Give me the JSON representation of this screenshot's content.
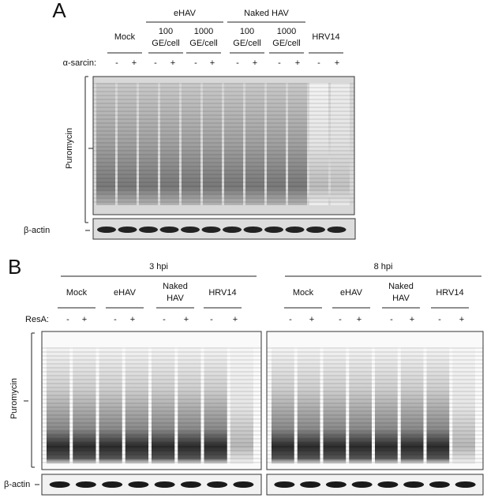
{
  "panel_a": {
    "letter": "A",
    "groups": [
      "eHAV",
      "Naked HAV"
    ],
    "lanes": [
      [
        "Mock"
      ],
      [
        "100",
        "GE/cell"
      ],
      [
        "1000",
        "GE/cell"
      ],
      [
        "100",
        "GE/cell"
      ],
      [
        "1000",
        "GE/cell"
      ],
      [
        "HRV14"
      ]
    ],
    "treatment_label": "α-sarcin:",
    "signs": [
      "-",
      "+",
      "-",
      "+",
      "-",
      "+",
      "-",
      "+",
      "-",
      "+",
      "-",
      "+"
    ],
    "blot_label": "Puromycin",
    "loading_label": "β-actin"
  },
  "panel_b": {
    "letter": "B",
    "timepoints": [
      {
        "label": "3 hpi",
        "lanes": [
          [
            "Mock"
          ],
          [
            "eHAV"
          ],
          [
            "Naked",
            "HAV"
          ],
          [
            "HRV14"
          ]
        ],
        "signs": [
          "-",
          "+",
          "-",
          "+",
          "-",
          "+",
          "-",
          "+"
        ]
      },
      {
        "label": "8 hpi",
        "lanes": [
          [
            "Mock"
          ],
          [
            "eHAV"
          ],
          [
            "Naked",
            "HAV"
          ],
          [
            "HRV14"
          ]
        ],
        "signs": [
          "-",
          "+",
          "-",
          "+",
          "-",
          "+",
          "-",
          "+"
        ]
      }
    ],
    "treatment_label": "ResA:",
    "blot_label": "Puromycin",
    "loading_label": "β-actin"
  }
}
